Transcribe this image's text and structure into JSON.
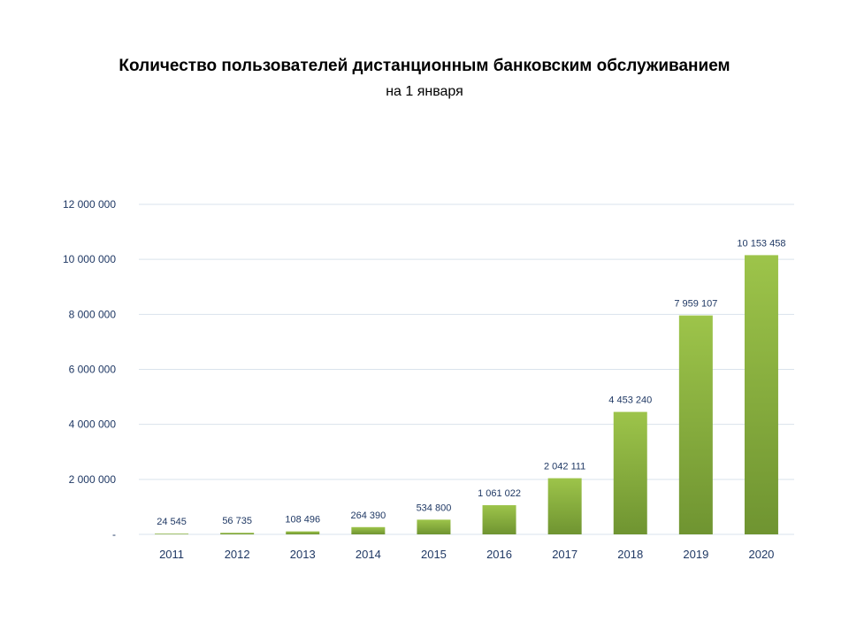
{
  "chart_data": {
    "type": "bar",
    "title": "Количество пользователей дистанционным  банковским обслуживанием",
    "subtitle": "на 1 января",
    "xlabel": "",
    "ylabel": "",
    "categories": [
      "2011",
      "2012",
      "2013",
      "2014",
      "2015",
      "2016",
      "2017",
      "2018",
      "2019",
      "2020"
    ],
    "values": [
      24545,
      56735,
      108496,
      264390,
      534800,
      1061022,
      2042111,
      4453240,
      7959107,
      10153458
    ],
    "data_labels": [
      "24 545",
      "56 735",
      "108 496",
      "264 390",
      "534 800",
      "1 061 022",
      "2 042 111",
      "4 453 240",
      "7 959 107",
      "10 153 458"
    ],
    "ylim": [
      0,
      12000000
    ],
    "y_ticks": [
      0,
      2000000,
      4000000,
      6000000,
      8000000,
      10000000,
      12000000
    ],
    "y_tick_labels": [
      "-",
      "2 000 000",
      "4 000 000",
      "6 000 000",
      "8 000 000",
      "10 000 000",
      "12 000 000"
    ],
    "grid": true,
    "legend": "none",
    "colors": {
      "bar_top": "#9dc44a",
      "bar_bottom": "#6f9431",
      "text": "#1f3864",
      "grid": "#d9e3ec"
    }
  }
}
